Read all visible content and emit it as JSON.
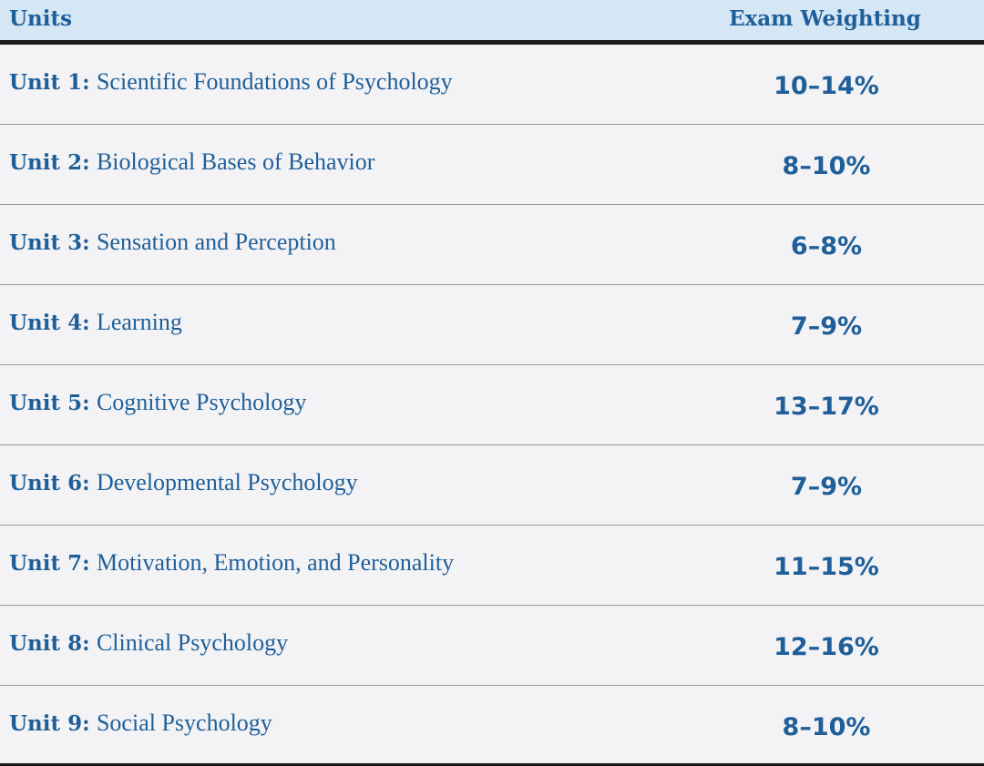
{
  "header": {
    "units_label": "Units",
    "weighting_label": "Exam Weighting"
  },
  "rows": [
    {
      "unit": "Unit 1:",
      "name": "Scientific Foundations of Psychology",
      "weight": "10–14%"
    },
    {
      "unit": "Unit 2:",
      "name": "Biological Bases of Behavior",
      "weight": "8–10%"
    },
    {
      "unit": "Unit 3:",
      "name": "Sensation and Perception",
      "weight": "6–8%"
    },
    {
      "unit": "Unit 4:",
      "name": "Learning",
      "weight": "7–9%"
    },
    {
      "unit": "Unit 5:",
      "name": "Cognitive Psychology",
      "weight": "13–17%"
    },
    {
      "unit": "Unit 6:",
      "name": "Developmental Psychology",
      "weight": "7–9%"
    },
    {
      "unit": "Unit 7:",
      "name": "Motivation, Emotion, and Personality",
      "weight": "11–15%"
    },
    {
      "unit": "Unit 8:",
      "name": "Clinical Psychology",
      "weight": "12–16%"
    },
    {
      "unit": "Unit 9:",
      "name": "Social Psychology",
      "weight": "8–10%"
    }
  ],
  "colors": {
    "header_bg": "#d5e6f5",
    "text": "#1f5f99",
    "body_bg": "#f3f3f5"
  }
}
